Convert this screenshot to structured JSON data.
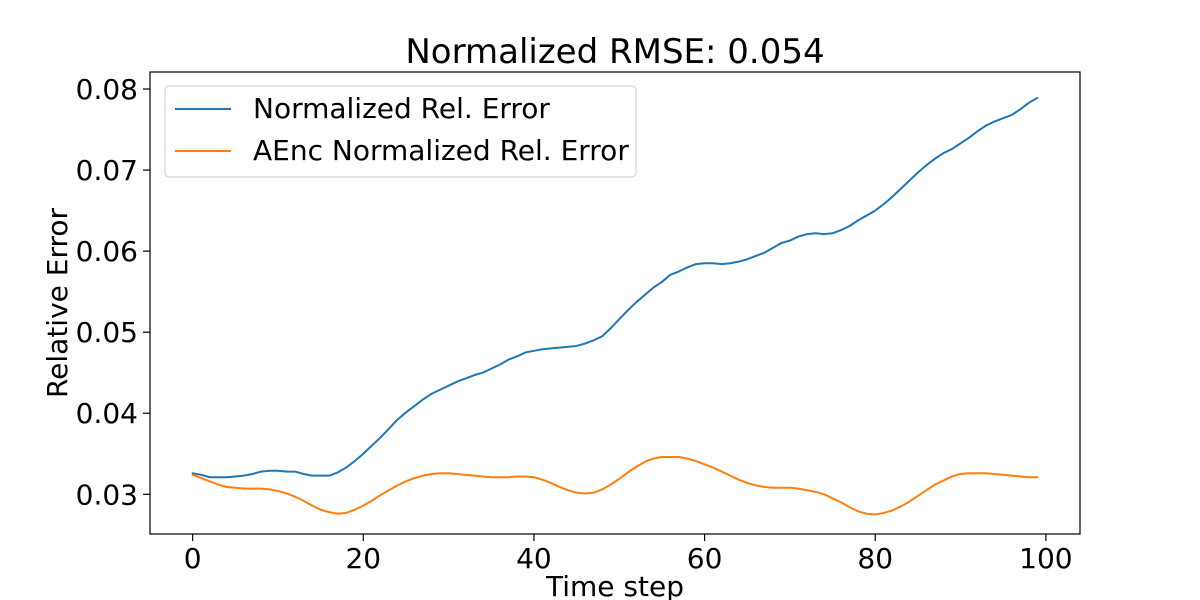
{
  "chart_data": {
    "type": "line",
    "title": "Normalized RMSE: 0.054",
    "xlabel": "Time step",
    "ylabel": "Relative Error",
    "xlim": [
      -5,
      104
    ],
    "ylim": [
      0.0251,
      0.0821
    ],
    "x_ticks": [
      0,
      20,
      40,
      60,
      80,
      100
    ],
    "y_ticks": [
      0.03,
      0.04,
      0.05,
      0.06,
      0.07,
      0.08
    ],
    "x_tick_labels": [
      "0",
      "20",
      "40",
      "60",
      "80",
      "100"
    ],
    "y_tick_labels": [
      "0.03",
      "0.04",
      "0.05",
      "0.06",
      "0.07",
      "0.08"
    ],
    "grid": false,
    "legend_position": "upper-left",
    "series": [
      {
        "name": "Normalized Rel. Error",
        "color": "#1f77b4",
        "x": [
          0,
          1,
          2,
          3,
          4,
          5,
          6,
          7,
          8,
          9,
          10,
          11,
          12,
          13,
          14,
          15,
          16,
          17,
          18,
          19,
          20,
          21,
          22,
          23,
          24,
          25,
          26,
          27,
          28,
          29,
          30,
          31,
          32,
          33,
          34,
          35,
          36,
          37,
          38,
          39,
          40,
          41,
          42,
          43,
          44,
          45,
          46,
          47,
          48,
          49,
          50,
          51,
          52,
          53,
          54,
          55,
          56,
          57,
          58,
          59,
          60,
          61,
          62,
          63,
          64,
          65,
          66,
          67,
          68,
          69,
          70,
          71,
          72,
          73,
          74,
          75,
          76,
          77,
          78,
          79,
          80,
          81,
          82,
          83,
          84,
          85,
          86,
          87,
          88,
          89,
          90,
          91,
          92,
          93,
          94,
          95,
          96,
          97,
          98,
          99
        ],
        "y": [
          0.0326,
          0.0324,
          0.0321,
          0.0321,
          0.0321,
          0.0322,
          0.0323,
          0.0325,
          0.0328,
          0.0329,
          0.0329,
          0.0328,
          0.0328,
          0.0325,
          0.0323,
          0.0323,
          0.0323,
          0.0327,
          0.0333,
          0.0341,
          0.035,
          0.036,
          0.037,
          0.0381,
          0.0392,
          0.0401,
          0.0409,
          0.0417,
          0.0424,
          0.0429,
          0.0434,
          0.0439,
          0.0443,
          0.0447,
          0.045,
          0.0455,
          0.046,
          0.0466,
          0.047,
          0.0475,
          0.0477,
          0.0479,
          0.048,
          0.0481,
          0.0482,
          0.0483,
          0.0486,
          0.049,
          0.0495,
          0.0505,
          0.0516,
          0.0527,
          0.0537,
          0.0546,
          0.0555,
          0.0562,
          0.0571,
          0.0575,
          0.058,
          0.0584,
          0.0585,
          0.0585,
          0.0584,
          0.0585,
          0.0587,
          0.059,
          0.0594,
          0.0598,
          0.0604,
          0.061,
          0.0613,
          0.0618,
          0.0621,
          0.0622,
          0.0621,
          0.0622,
          0.0626,
          0.0631,
          0.0638,
          0.0644,
          0.065,
          0.0658,
          0.0667,
          0.0677,
          0.0687,
          0.0697,
          0.0706,
          0.0714,
          0.0721,
          0.0726,
          0.0733,
          0.074,
          0.0748,
          0.0755,
          0.076,
          0.0764,
          0.0768,
          0.0775,
          0.0783,
          0.0789
        ]
      },
      {
        "name": "AEnc Normalized Rel. Error",
        "color": "#ff7f0e",
        "x": [
          0,
          1,
          2,
          3,
          4,
          5,
          6,
          7,
          8,
          9,
          10,
          11,
          12,
          13,
          14,
          15,
          16,
          17,
          18,
          19,
          20,
          21,
          22,
          23,
          24,
          25,
          26,
          27,
          28,
          29,
          30,
          31,
          32,
          33,
          34,
          35,
          36,
          37,
          38,
          39,
          40,
          41,
          42,
          43,
          44,
          45,
          46,
          47,
          48,
          49,
          50,
          51,
          52,
          53,
          54,
          55,
          56,
          57,
          58,
          59,
          60,
          61,
          62,
          63,
          64,
          65,
          66,
          67,
          68,
          69,
          70,
          71,
          72,
          73,
          74,
          75,
          76,
          77,
          78,
          79,
          80,
          81,
          82,
          83,
          84,
          85,
          86,
          87,
          88,
          89,
          90,
          91,
          92,
          93,
          94,
          95,
          96,
          97,
          98,
          99
        ],
        "y": [
          0.0324,
          0.032,
          0.0316,
          0.0312,
          0.0309,
          0.0308,
          0.0307,
          0.0307,
          0.0307,
          0.0306,
          0.0304,
          0.0301,
          0.0297,
          0.0292,
          0.0286,
          0.0281,
          0.0278,
          0.0276,
          0.0277,
          0.0281,
          0.0286,
          0.0292,
          0.0299,
          0.0305,
          0.0311,
          0.0316,
          0.032,
          0.0323,
          0.0325,
          0.0326,
          0.0326,
          0.0325,
          0.0324,
          0.0323,
          0.0322,
          0.0321,
          0.0321,
          0.0321,
          0.0322,
          0.0322,
          0.0321,
          0.0318,
          0.0314,
          0.0309,
          0.0305,
          0.0302,
          0.0301,
          0.0302,
          0.0306,
          0.0312,
          0.0319,
          0.0327,
          0.0334,
          0.034,
          0.0344,
          0.0346,
          0.0346,
          0.0346,
          0.0344,
          0.0341,
          0.0337,
          0.0333,
          0.0328,
          0.0323,
          0.0318,
          0.0314,
          0.0311,
          0.0309,
          0.0308,
          0.0308,
          0.0308,
          0.0307,
          0.0305,
          0.0303,
          0.03,
          0.0295,
          0.029,
          0.0284,
          0.0279,
          0.0276,
          0.0275,
          0.0277,
          0.028,
          0.0285,
          0.0291,
          0.0298,
          0.0305,
          0.0312,
          0.0317,
          0.0322,
          0.0325,
          0.0326,
          0.0326,
          0.0326,
          0.0325,
          0.0324,
          0.0323,
          0.0322,
          0.0321,
          0.0321
        ]
      }
    ]
  }
}
